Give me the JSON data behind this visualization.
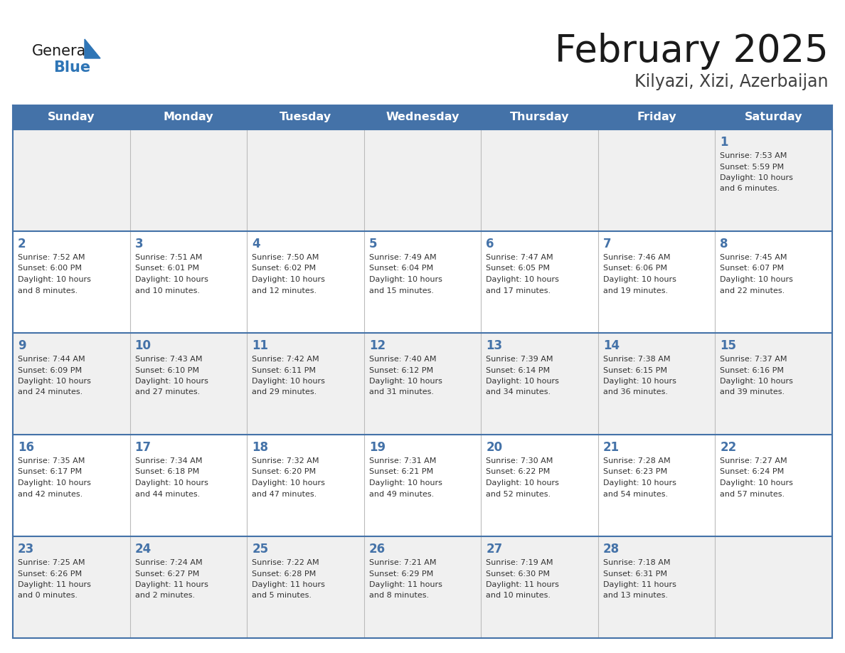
{
  "title": "February 2025",
  "subtitle": "Kilyazi, Xizi, Azerbaijan",
  "header_bg": "#4472A8",
  "header_text_color": "#FFFFFF",
  "cell_bg": "#FFFFFF",
  "row_alt_bg": "#F0F0F0",
  "border_color": "#4472A8",
  "grid_color": "#BBBBBB",
  "title_color": "#1A1A1A",
  "subtitle_color": "#404040",
  "day_number_color": "#4472A8",
  "cell_text_color": "#333333",
  "days_of_week": [
    "Sunday",
    "Monday",
    "Tuesday",
    "Wednesday",
    "Thursday",
    "Friday",
    "Saturday"
  ],
  "weeks": [
    [
      {
        "day": null,
        "info": null
      },
      {
        "day": null,
        "info": null
      },
      {
        "day": null,
        "info": null
      },
      {
        "day": null,
        "info": null
      },
      {
        "day": null,
        "info": null
      },
      {
        "day": null,
        "info": null
      },
      {
        "day": 1,
        "info": "Sunrise: 7:53 AM\nSunset: 5:59 PM\nDaylight: 10 hours\nand 6 minutes."
      }
    ],
    [
      {
        "day": 2,
        "info": "Sunrise: 7:52 AM\nSunset: 6:00 PM\nDaylight: 10 hours\nand 8 minutes."
      },
      {
        "day": 3,
        "info": "Sunrise: 7:51 AM\nSunset: 6:01 PM\nDaylight: 10 hours\nand 10 minutes."
      },
      {
        "day": 4,
        "info": "Sunrise: 7:50 AM\nSunset: 6:02 PM\nDaylight: 10 hours\nand 12 minutes."
      },
      {
        "day": 5,
        "info": "Sunrise: 7:49 AM\nSunset: 6:04 PM\nDaylight: 10 hours\nand 15 minutes."
      },
      {
        "day": 6,
        "info": "Sunrise: 7:47 AM\nSunset: 6:05 PM\nDaylight: 10 hours\nand 17 minutes."
      },
      {
        "day": 7,
        "info": "Sunrise: 7:46 AM\nSunset: 6:06 PM\nDaylight: 10 hours\nand 19 minutes."
      },
      {
        "day": 8,
        "info": "Sunrise: 7:45 AM\nSunset: 6:07 PM\nDaylight: 10 hours\nand 22 minutes."
      }
    ],
    [
      {
        "day": 9,
        "info": "Sunrise: 7:44 AM\nSunset: 6:09 PM\nDaylight: 10 hours\nand 24 minutes."
      },
      {
        "day": 10,
        "info": "Sunrise: 7:43 AM\nSunset: 6:10 PM\nDaylight: 10 hours\nand 27 minutes."
      },
      {
        "day": 11,
        "info": "Sunrise: 7:42 AM\nSunset: 6:11 PM\nDaylight: 10 hours\nand 29 minutes."
      },
      {
        "day": 12,
        "info": "Sunrise: 7:40 AM\nSunset: 6:12 PM\nDaylight: 10 hours\nand 31 minutes."
      },
      {
        "day": 13,
        "info": "Sunrise: 7:39 AM\nSunset: 6:14 PM\nDaylight: 10 hours\nand 34 minutes."
      },
      {
        "day": 14,
        "info": "Sunrise: 7:38 AM\nSunset: 6:15 PM\nDaylight: 10 hours\nand 36 minutes."
      },
      {
        "day": 15,
        "info": "Sunrise: 7:37 AM\nSunset: 6:16 PM\nDaylight: 10 hours\nand 39 minutes."
      }
    ],
    [
      {
        "day": 16,
        "info": "Sunrise: 7:35 AM\nSunset: 6:17 PM\nDaylight: 10 hours\nand 42 minutes."
      },
      {
        "day": 17,
        "info": "Sunrise: 7:34 AM\nSunset: 6:18 PM\nDaylight: 10 hours\nand 44 minutes."
      },
      {
        "day": 18,
        "info": "Sunrise: 7:32 AM\nSunset: 6:20 PM\nDaylight: 10 hours\nand 47 minutes."
      },
      {
        "day": 19,
        "info": "Sunrise: 7:31 AM\nSunset: 6:21 PM\nDaylight: 10 hours\nand 49 minutes."
      },
      {
        "day": 20,
        "info": "Sunrise: 7:30 AM\nSunset: 6:22 PM\nDaylight: 10 hours\nand 52 minutes."
      },
      {
        "day": 21,
        "info": "Sunrise: 7:28 AM\nSunset: 6:23 PM\nDaylight: 10 hours\nand 54 minutes."
      },
      {
        "day": 22,
        "info": "Sunrise: 7:27 AM\nSunset: 6:24 PM\nDaylight: 10 hours\nand 57 minutes."
      }
    ],
    [
      {
        "day": 23,
        "info": "Sunrise: 7:25 AM\nSunset: 6:26 PM\nDaylight: 11 hours\nand 0 minutes."
      },
      {
        "day": 24,
        "info": "Sunrise: 7:24 AM\nSunset: 6:27 PM\nDaylight: 11 hours\nand 2 minutes."
      },
      {
        "day": 25,
        "info": "Sunrise: 7:22 AM\nSunset: 6:28 PM\nDaylight: 11 hours\nand 5 minutes."
      },
      {
        "day": 26,
        "info": "Sunrise: 7:21 AM\nSunset: 6:29 PM\nDaylight: 11 hours\nand 8 minutes."
      },
      {
        "day": 27,
        "info": "Sunrise: 7:19 AM\nSunset: 6:30 PM\nDaylight: 11 hours\nand 10 minutes."
      },
      {
        "day": 28,
        "info": "Sunrise: 7:18 AM\nSunset: 6:31 PM\nDaylight: 11 hours\nand 13 minutes."
      },
      {
        "day": null,
        "info": null
      }
    ]
  ]
}
